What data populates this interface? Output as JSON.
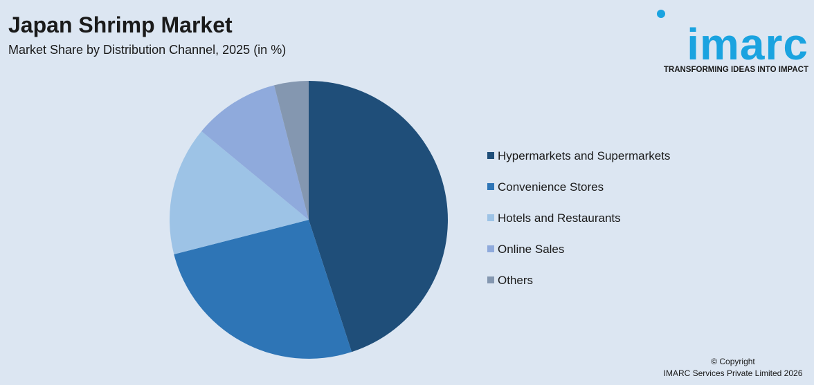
{
  "chart_data": {
    "type": "pie",
    "title": "Japan Shrimp Market",
    "subtitle": "Market Share by Distribution Channel, 2025 (in %)",
    "categories": [
      "Hypermarkets and Supermarkets",
      "Convenience Stores",
      "Hotels and Restaurants",
      "Online Sales",
      "Others"
    ],
    "values": [
      45,
      26,
      15,
      10,
      4
    ],
    "colors": [
      "#1f4e79",
      "#2e75b6",
      "#9dc3e6",
      "#8faadc",
      "#8497b0"
    ],
    "legend": "right"
  },
  "logo": {
    "name": "imarc",
    "tagline": "TRANSFORMING IDEAS INTO IMPACT"
  },
  "footer": {
    "copyright": "© Copyright",
    "owner": "IMARC Services Private Limited 2026"
  }
}
